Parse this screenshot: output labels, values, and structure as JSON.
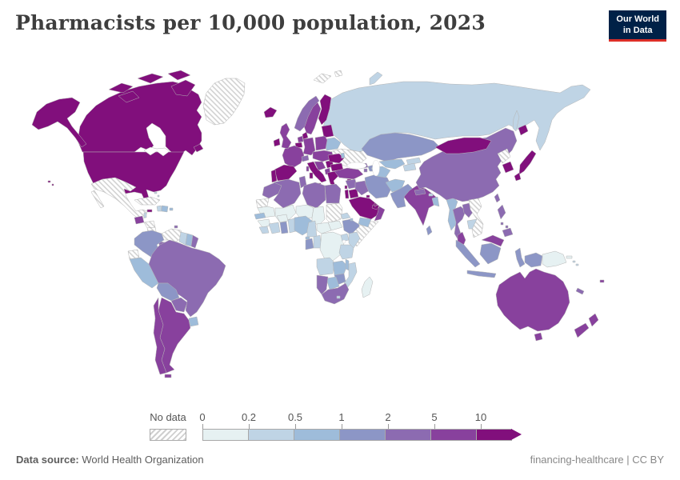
{
  "header": {
    "logo": {
      "line1": "Our World",
      "line2": "in Data"
    }
  },
  "footer": {
    "source_label": "Data source:",
    "source_value": "World Health Organization",
    "credit": "financing-healthcare | CC BY"
  },
  "chart_data": {
    "type": "choropleth_map",
    "title": "Pharmacists per 10,000 population, 2023",
    "unit": "pharmacists per 10,000 population",
    "legend": {
      "no_data_label": "No data",
      "ticks": [
        "0",
        "0.2",
        "0.5",
        "1",
        "2",
        "5",
        "10"
      ]
    },
    "bin_order": [
      "0-0.2",
      "0.2-0.5",
      "0.5-1",
      "1-2",
      "2-5",
      "5-10",
      "10+"
    ],
    "palette": {
      "0-0.2": "#e6f1f2",
      "0.2-0.5": "#bfd4e5",
      "0.5-1": "#9ebcda",
      "1-2": "#8c96c6",
      "2-5": "#8c6bb1",
      "5-10": "#88419d",
      "10+": "#810f7c",
      "no-data": "hatch"
    },
    "countries": {
      "canada": "10+",
      "usa": "10+",
      "greenland": "no-data",
      "mexico": "no-data",
      "guatemala": "5-10",
      "belize": "0.2-0.5",
      "honduras": "no-data",
      "nicaragua": "no-data",
      "costa-rica": "10+",
      "panama": "2-5",
      "cuba": "no-data",
      "jamaica": "10+",
      "haiti": "0.2-0.5",
      "dominican-republic": "0.5-1",
      "puerto-rico": "0.5-1",
      "bahamas": "0.2-0.5",
      "trinidad-and-tobago": "2-5",
      "colombia": "1-2",
      "venezuela": "no-data",
      "guyana": "0.2-0.5",
      "suriname": "0.5-1",
      "french-guiana": "2-5",
      "ecuador": "no-data",
      "peru": "0.5-1",
      "brazil": "2-5",
      "bolivia": "1-2",
      "paraguay": "2-5",
      "uruguay": "0.5-1",
      "argentina": "5-10",
      "chile": "5-10",
      "iceland": "10+",
      "ireland": "10+",
      "united-kingdom": "5-10",
      "norway": "2-5",
      "sweden": "5-10",
      "finland": "10+",
      "denmark": "10+",
      "baltic-states": "10+",
      "belarus": "0.5-1",
      "ukraine": "no-data",
      "moldova": "0.5-1",
      "poland": "5-10",
      "germany": "5-10",
      "netherlands": "5-10",
      "belgium": "10+",
      "france": "5-10",
      "switzerland": "2-5",
      "central-europe": "5-10",
      "spain": "10+",
      "portugal": "10+",
      "italy": "10+",
      "western-balkans": "5-10",
      "serbia": "10+",
      "albania": "5-10",
      "romania": "10+",
      "bulgaria": "10+",
      "greece": "10+",
      "cyprus": "10+",
      "russia": "0.2-0.5",
      "svalbard": "no-data",
      "morocco": "2-5",
      "western-sahara": "no-data",
      "algeria": "2-5",
      "tunisia": "2-5",
      "libya": "2-5",
      "egypt": "2-5",
      "mauritania": "0-0.2",
      "mali": "0-0.2",
      "niger": "0-0.2",
      "chad": "0-0.2",
      "sudan": "no-data",
      "eritrea": "0.2-0.5",
      "south-sudan": "0-0.2",
      "ethiopia": "1-2",
      "djibouti": "0.5-1",
      "somalia": "no-data",
      "senegal": "0.5-1",
      "guinea": "0-0.2",
      "sierra-leone": "0.2-0.5",
      "cote-divoire": "0.2-0.5",
      "burkina-faso": "0-0.2",
      "ghana": "1-2",
      "togo-benin": "0.2-0.5",
      "nigeria": "0.5-1",
      "cameroon": "0.2-0.5",
      "central-african-republic": "0-0.2",
      "gabon": "1-2",
      "equatorial-guinea": "0.5-1",
      "congo": "0.2-0.5",
      "drc": "0-0.2",
      "uganda": "0.2-0.5",
      "kenya": "0.2-0.5",
      "tanzania": "0.2-0.5",
      "angola": "0.2-0.5",
      "zambia": "0.5-1",
      "malawi": "0.5-1",
      "mozambique": "0.2-0.5",
      "zimbabwe": "1-2",
      "botswana": "0.5-1",
      "namibia": "2-5",
      "south-africa": "2-5",
      "lesotho": "0.2-0.5",
      "madagascar": "0-0.2",
      "turkey": "5-10",
      "syria": "2-5",
      "lebanon": "10+",
      "israel": "10+",
      "jordan": "10+",
      "iraq": "2-5",
      "kuwait": "10+",
      "qatar": "10+",
      "saudi-arabia": "10+",
      "yemen": "0.5-1",
      "oman": "5-10",
      "uae": "10+",
      "iran": "1-2",
      "georgia": "2-5",
      "azerbaijan": "1-2",
      "armenia": "2-5",
      "kazakhstan": "1-2",
      "uzbekistan": "0.5-1",
      "turkmenistan": "0.5-1",
      "kyrgyzstan": "0.2-0.5",
      "tajikistan": "0.2-0.5",
      "afghanistan": "0.5-1",
      "pakistan": "1-2",
      "india": "5-10",
      "nepal": "2-5",
      "bhutan": "0.2-0.5",
      "bangladesh": "0.5-1",
      "sri-lanka": "1-2",
      "myanmar": "0.5-1",
      "china": "2-5",
      "mongolia": "10+",
      "north-korea": "no-data",
      "south-korea": "10+",
      "japan": "10+",
      "taiwan": "2-5",
      "thailand": "2-5",
      "laos": "2-5",
      "cambodia": "0.2-0.5",
      "vietnam": "no-data",
      "malaysia": "5-10",
      "indonesia": "1-2",
      "philippines": "2-5",
      "papua-new-guinea": "0-0.2",
      "solomon-islands": "0.2-0.5",
      "australia": "5-10",
      "new-zealand": "5-10",
      "new-caledonia": "2-5",
      "fiji": "5-10"
    }
  }
}
